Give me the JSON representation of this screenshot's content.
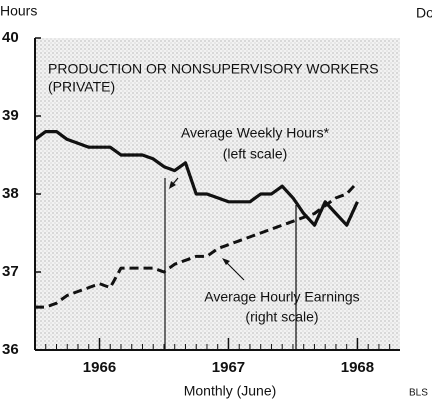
{
  "chart_data": {
    "type": "line",
    "title": "PRODUCTION OR NONSUPERVISORY WORKERS",
    "subtitle": "(PRIVATE)",
    "ylabel": "Hours",
    "y2label": "Do",
    "xlabel": "Monthly (June)",
    "source": "BLS",
    "x": [
      1965.5,
      1965.583,
      1965.667,
      1965.75,
      1965.833,
      1965.917,
      1966.0,
      1966.083,
      1966.167,
      1966.25,
      1966.333,
      1966.417,
      1966.5,
      1966.583,
      1966.667,
      1966.75,
      1966.833,
      1966.917,
      1967.0,
      1967.083,
      1967.167,
      1967.25,
      1967.333,
      1967.417,
      1967.5,
      1967.583,
      1967.667,
      1967.75,
      1967.833,
      1967.917,
      1968.0
    ],
    "series": [
      {
        "name": "Average Weekly Hours*",
        "note": "(left scale)",
        "color": "#111111",
        "style": "solid",
        "values": [
          38.7,
          38.8,
          38.8,
          38.7,
          38.65,
          38.6,
          38.6,
          38.6,
          38.5,
          38.5,
          38.5,
          38.45,
          38.35,
          38.3,
          38.4,
          38.0,
          38.0,
          37.95,
          37.9,
          37.9,
          37.9,
          38.0,
          38.0,
          38.1,
          37.95,
          37.75,
          37.6,
          37.9,
          37.75,
          37.6,
          37.9
        ]
      },
      {
        "name": "Average Hourly Earnings",
        "note": "(right scale)",
        "color": "#111111",
        "style": "dashed",
        "axis": "y2",
        "values": [
          2.41,
          2.41,
          2.42,
          2.44,
          2.45,
          2.46,
          2.47,
          2.46,
          2.51,
          2.51,
          2.51,
          2.51,
          2.5,
          2.52,
          2.53,
          2.54,
          2.54,
          2.56,
          2.57,
          2.58,
          2.59,
          2.6,
          2.61,
          2.62,
          2.63,
          2.64,
          2.65,
          2.67,
          2.69,
          2.7,
          2.73
        ]
      }
    ],
    "xlim": [
      1965.5,
      1968.33
    ],
    "xticks": [
      1966,
      1967,
      1968
    ],
    "ylim": [
      36,
      40
    ],
    "yticks": [
      36,
      37,
      38,
      39,
      40
    ],
    "y2lim": [
      2.3,
      3.1
    ]
  }
}
